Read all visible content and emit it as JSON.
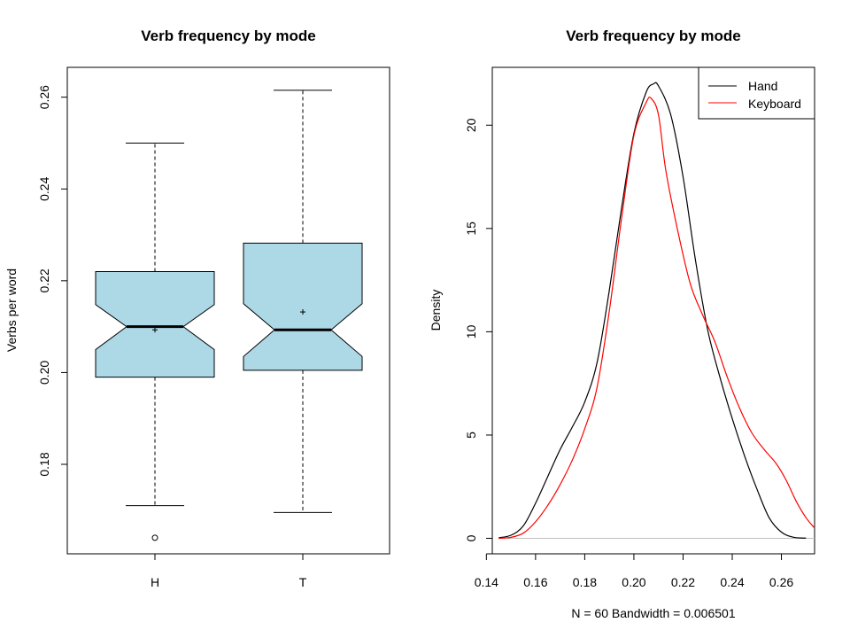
{
  "chart_data": [
    {
      "type": "box",
      "title": "Verb frequency by mode",
      "xlabel": "",
      "ylabel": "Verbs per word",
      "ylim": [
        0.1605,
        0.2665
      ],
      "yticks": [
        0.18,
        0.2,
        0.22,
        0.24,
        0.26
      ],
      "ytick_labels": [
        "0.18",
        "0.20",
        "0.22",
        "0.24",
        "0.26"
      ],
      "notched": true,
      "fill_color": "#add8e6",
      "boxes": [
        {
          "label": "H",
          "whisker_low": 0.171,
          "q1": 0.199,
          "median": 0.21,
          "q3": 0.222,
          "whisker_high": 0.25,
          "notch_low": 0.205,
          "notch_high": 0.2148,
          "mean": 0.2093,
          "outliers": [
            0.164
          ]
        },
        {
          "label": "T",
          "whisker_low": 0.1695,
          "q1": 0.2005,
          "median": 0.2093,
          "q3": 0.2282,
          "whisker_high": 0.2615,
          "notch_low": 0.2035,
          "notch_high": 0.215,
          "mean": 0.2132,
          "outliers": []
        }
      ]
    },
    {
      "type": "line",
      "title": "Verb frequency by mode",
      "xlabel": "N = 60   Bandwidth = 0.006501",
      "ylabel": "Density",
      "xlim": [
        0.1424,
        0.2735
      ],
      "ylim": [
        -0.75,
        22.8
      ],
      "xticks": [
        0.14,
        0.16,
        0.18,
        0.2,
        0.22,
        0.24,
        0.26
      ],
      "xtick_labels": [
        "0.14",
        "0.16",
        "0.18",
        "0.20",
        "0.22",
        "0.24",
        "0.26"
      ],
      "yticks": [
        0,
        5,
        10,
        15,
        20
      ],
      "ytick_labels": [
        "0",
        "5",
        "10",
        "15",
        "20"
      ],
      "legend_position": "top-right",
      "baseline_color": "#bebebe",
      "series": [
        {
          "name": "Hand",
          "color": "#000000",
          "x": [
            0.145,
            0.15,
            0.155,
            0.16,
            0.165,
            0.17,
            0.175,
            0.18,
            0.185,
            0.19,
            0.195,
            0.2,
            0.205,
            0.208,
            0.21,
            0.215,
            0.22,
            0.225,
            0.23,
            0.235,
            0.24,
            0.245,
            0.25,
            0.255,
            0.26,
            0.265,
            0.27
          ],
          "y": [
            0.03,
            0.15,
            0.6,
            1.7,
            3.0,
            4.3,
            5.4,
            6.6,
            8.5,
            12.0,
            16.0,
            19.6,
            21.6,
            22.0,
            21.9,
            20.5,
            17.5,
            13.5,
            10.1,
            7.8,
            5.8,
            4.0,
            2.4,
            1.0,
            0.3,
            0.05,
            0.01
          ]
        },
        {
          "name": "Keyboard",
          "color": "#ff0000",
          "x": [
            0.145,
            0.15,
            0.155,
            0.16,
            0.165,
            0.17,
            0.175,
            0.18,
            0.185,
            0.19,
            0.195,
            0.2,
            0.205,
            0.207,
            0.21,
            0.213,
            0.218,
            0.223,
            0.228,
            0.233,
            0.238,
            0.243,
            0.248,
            0.253,
            0.258,
            0.262,
            0.266,
            0.27,
            0.2735
          ],
          "y": [
            0.0,
            0.05,
            0.25,
            0.8,
            1.6,
            2.6,
            3.8,
            5.3,
            7.3,
            11.0,
            15.5,
            19.5,
            21.1,
            21.3,
            20.5,
            17.8,
            14.8,
            12.3,
            10.8,
            9.5,
            7.8,
            6.3,
            5.1,
            4.3,
            3.6,
            2.8,
            1.8,
            1.0,
            0.5
          ]
        }
      ]
    }
  ]
}
